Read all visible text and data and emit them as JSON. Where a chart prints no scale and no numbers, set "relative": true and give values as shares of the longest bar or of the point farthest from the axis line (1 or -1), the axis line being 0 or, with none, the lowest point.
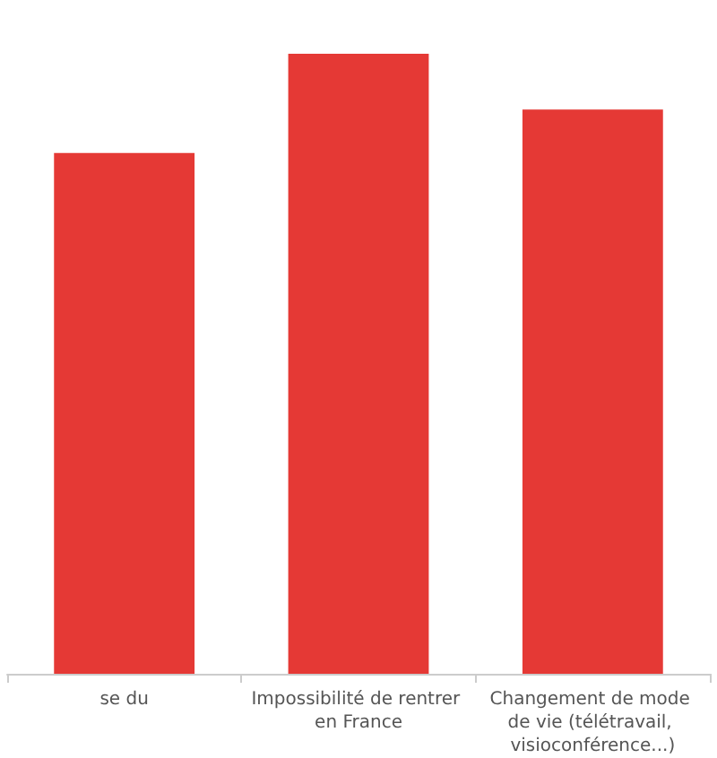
{
  "chart_data": {
    "type": "bar",
    "relative": true,
    "categories": [
      "se du",
      "Impossibilité de rentrer en France",
      "Changement de mode de vie (télétravail, visioconférence...)"
    ],
    "values": [
      0.84,
      1,
      0.91
    ],
    "color": "#e53935"
  }
}
